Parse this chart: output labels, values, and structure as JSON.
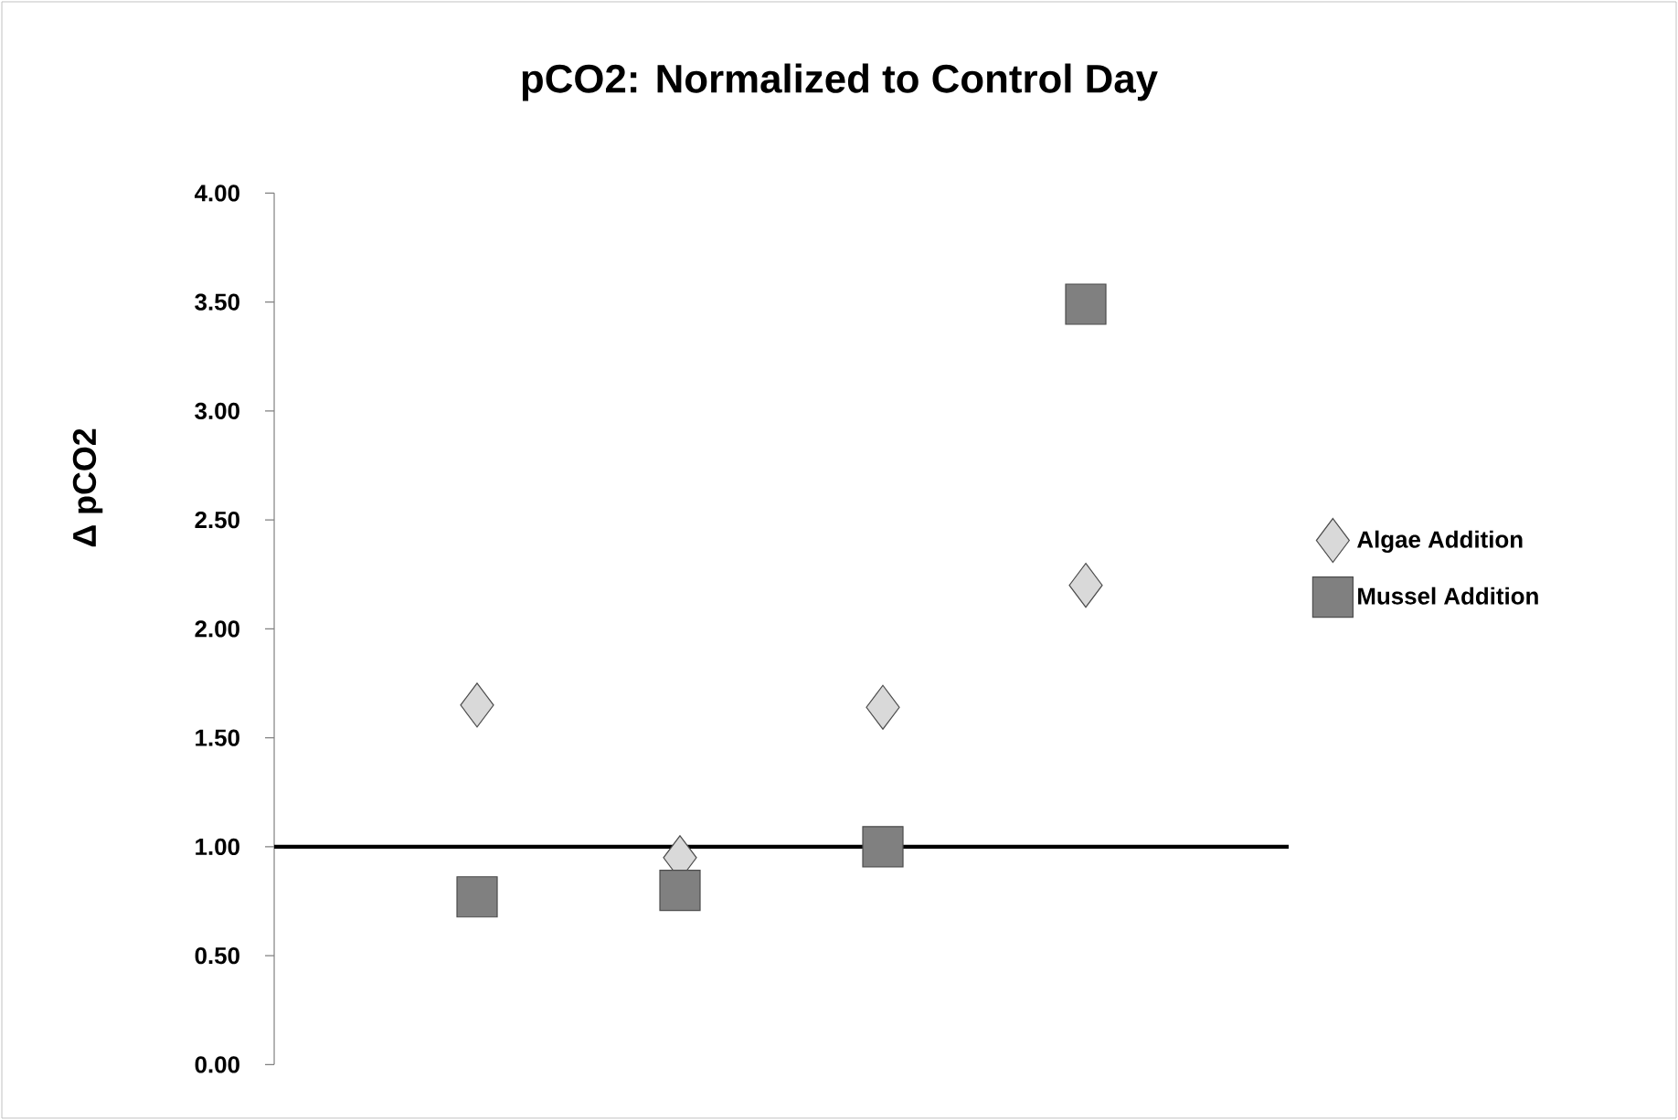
{
  "chart_data": {
    "type": "scatter",
    "title": "pCO2: Normalized to Control Day",
    "ylabel": "Δ pCO2",
    "categories": [
      null,
      null,
      null,
      null
    ],
    "series": [
      {
        "name": "Algae Addition",
        "color": "#d9d9d9",
        "marker": "diamond",
        "values": [
          1.65,
          0.95,
          1.64,
          2.2
        ]
      },
      {
        "name": "Mussel Addition",
        "color": "#808080",
        "marker": "square",
        "values": [
          0.77,
          0.8,
          1.0,
          3.49
        ]
      }
    ],
    "ylim": [
      0,
      4
    ],
    "yticks": [
      {
        "value": 0,
        "label": "0.00"
      },
      {
        "value": 0.5,
        "label": "0.50"
      },
      {
        "value": 1,
        "label": "1.00"
      },
      {
        "value": 1.5,
        "label": "1.50"
      },
      {
        "value": 2,
        "label": "2.00"
      },
      {
        "value": 2.5,
        "label": "2.50"
      },
      {
        "value": 3,
        "label": "3.00"
      },
      {
        "value": 3.5,
        "label": "3.50"
      },
      {
        "value": 4,
        "label": "4.00"
      }
    ],
    "ref_lines": [
      {
        "axis": "y",
        "value": 1,
        "color": "#000000"
      }
    ],
    "tick_labels": "y",
    "legend": "right",
    "grid": false
  }
}
